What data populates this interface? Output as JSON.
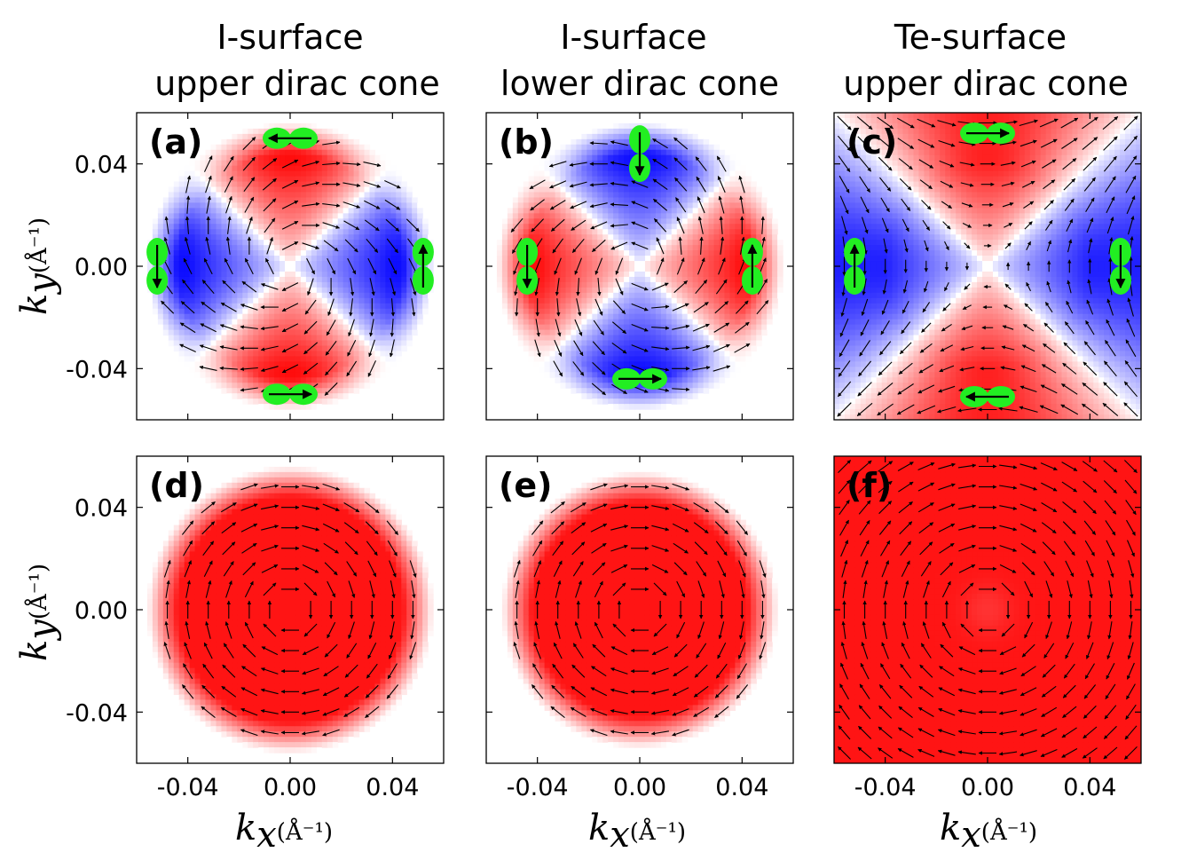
{
  "column_titles": [
    [
      "I-surface",
      "upper dirac cone"
    ],
    [
      "I-surface",
      "lower dirac cone"
    ],
    [
      "Te-surface",
      "upper dirac cone"
    ]
  ],
  "axes": {
    "xlabel_var": "k",
    "xlabel_sub": "x",
    "ylabel_var": "k",
    "ylabel_sub": "y",
    "unit": "(Å⁻¹)",
    "ticks": [
      -0.04,
      0.0,
      0.04
    ],
    "tick_labels": [
      "-0.04",
      "0.00",
      "0.04"
    ],
    "xlim": [
      -0.06,
      0.06
    ],
    "ylim": [
      -0.06,
      0.06
    ]
  },
  "colors": {
    "positive": "#ff0000",
    "negative": "#0000ff",
    "orbital": "#22ee22"
  },
  "chart_data": [
    {
      "type": "heatmap",
      "label": "(a)",
      "row": 0,
      "col": 0,
      "field": "quadrupole",
      "sign": 1,
      "domain": "disk",
      "radius": 0.056,
      "vector_field": "radial-tangential",
      "orbitals": [
        {
          "k": [
            0.0,
            0.05
          ],
          "dir": "left"
        },
        {
          "k": [
            0.0,
            -0.05
          ],
          "dir": "right"
        },
        {
          "k": [
            -0.052,
            0.0
          ],
          "dir": "down"
        },
        {
          "k": [
            0.052,
            0.0
          ],
          "dir": "up"
        }
      ]
    },
    {
      "type": "heatmap",
      "label": "(b)",
      "row": 0,
      "col": 1,
      "field": "quadrupole",
      "sign": -1,
      "domain": "disk",
      "radius": 0.056,
      "vector_field": "reverse-tangential",
      "orbitals": [
        {
          "k": [
            0.0,
            0.044
          ],
          "dir": "down"
        },
        {
          "k": [
            0.0,
            -0.044
          ],
          "dir": "right"
        },
        {
          "k": [
            -0.044,
            0.0
          ],
          "dir": "down"
        },
        {
          "k": [
            0.044,
            0.0
          ],
          "dir": "up"
        }
      ]
    },
    {
      "type": "heatmap",
      "label": "(c)",
      "row": 0,
      "col": 2,
      "field": "quadrupole",
      "sign": 1,
      "domain": "square",
      "radius": 0.06,
      "vector_field": "hyperbolic",
      "orbitals": [
        {
          "k": [
            0.0,
            0.052
          ],
          "dir": "right"
        },
        {
          "k": [
            0.0,
            -0.051
          ],
          "dir": "left"
        },
        {
          "k": [
            -0.052,
            0.0
          ],
          "dir": "up"
        },
        {
          "k": [
            0.052,
            0.0
          ],
          "dir": "down"
        }
      ]
    },
    {
      "type": "heatmap",
      "label": "(d)",
      "row": 1,
      "col": 0,
      "field": "uniform",
      "sign": 1,
      "domain": "disk",
      "radius": 0.056,
      "vector_field": "clockwise",
      "orbitals": []
    },
    {
      "type": "heatmap",
      "label": "(e)",
      "row": 1,
      "col": 1,
      "field": "uniform",
      "sign": 1,
      "domain": "disk",
      "radius": 0.054,
      "vector_field": "clockwise",
      "orbitals": []
    },
    {
      "type": "heatmap",
      "label": "(f)",
      "row": 1,
      "col": 2,
      "field": "uniform",
      "sign": 1,
      "domain": "square",
      "radius": 0.06,
      "vector_field": "clockwise",
      "orbitals": []
    }
  ]
}
